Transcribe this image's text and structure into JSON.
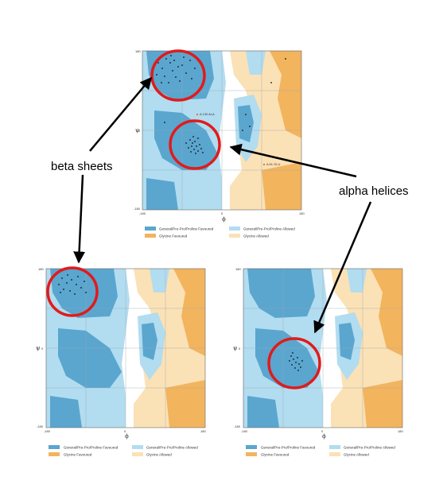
{
  "annotations": {
    "beta_label": "beta sheets",
    "alpha_label": "alpha helices"
  },
  "colors": {
    "general_favoured": "#5aa6cf",
    "general_allowed": "#b2dcf0",
    "glycine_favoured": "#f3b45e",
    "glycine_allowed": "#fbe1b6",
    "circle": "#e01b1b",
    "residue_marker": "#e8742a"
  },
  "plots": [
    {
      "id": "top",
      "phi_axis": "ϕ",
      "psi_axis": "ψ",
      "ticks": {
        "x_min": "-180",
        "x_mid": "0",
        "x_max": "180",
        "y_max": "180",
        "y_mid": "0",
        "y_min": "-180"
      },
      "legend": [
        "General/Pre-Pro/Proline Favoured",
        "General/Pre-Pro/Proline Allowed",
        "Glycine Favoured",
        "Glycine Allowed"
      ],
      "outliers": [
        {
          "label": "A 130  ALA"
        },
        {
          "label": "A 61  GLU"
        }
      ]
    },
    {
      "id": "bottom-left",
      "phi_axis": "ϕ",
      "psi_axis": "ψ",
      "ticks": {
        "x_min": "-180",
        "x_mid": "0",
        "x_max": "180",
        "y_max": "180",
        "y_mid": "0",
        "y_min": "-180"
      },
      "legend": [
        "General/Pre-Pro/Proline Favoured",
        "General/Pre-Pro/Proline Allowed",
        "Glycine Favoured",
        "Glycine Allowed"
      ]
    },
    {
      "id": "bottom-right",
      "phi_axis": "ϕ",
      "psi_axis": "ψ",
      "ticks": {
        "x_min": "-180",
        "x_mid": "0",
        "x_max": "180",
        "y_max": "180",
        "y_mid": "0",
        "y_min": "-180"
      },
      "legend": [
        "General/Pre-Pro/Proline Favoured",
        "General/Pre-Pro/Proline Allowed",
        "Glycine Favoured",
        "Glycine Allowed"
      ]
    }
  ]
}
